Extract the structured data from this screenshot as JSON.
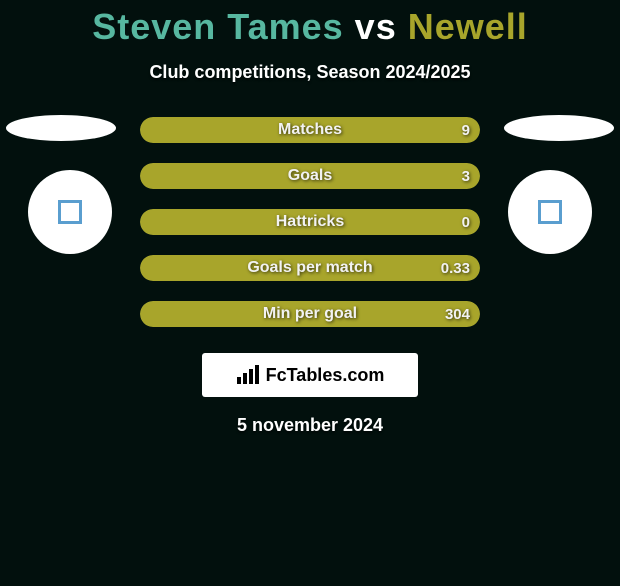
{
  "background_color": "#02100d",
  "title": {
    "player": "Steven Tames",
    "vs": "vs",
    "opponent": "Newell",
    "player_color": "#57b7a0",
    "vs_color": "#ffffff",
    "opponent_color": "#a8a52b",
    "fontsize": 36
  },
  "subtitle": "Club competitions, Season 2024/2025",
  "avatars": {
    "left_border_color": "#5a9ecf",
    "right_border_color": "#5a9ecf"
  },
  "stats": {
    "track_color": "#0e2320",
    "fill_color": "#a8a52b",
    "text_color": "#f2f2f2",
    "rows": [
      {
        "label": "Matches",
        "value": "9",
        "fill_pct": 100
      },
      {
        "label": "Goals",
        "value": "3",
        "fill_pct": 100
      },
      {
        "label": "Hattricks",
        "value": "0",
        "fill_pct": 100
      },
      {
        "label": "Goals per match",
        "value": "0.33",
        "fill_pct": 100
      },
      {
        "label": "Min per goal",
        "value": "304",
        "fill_pct": 100
      }
    ]
  },
  "brand": "FcTables.com",
  "date": "5 november 2024"
}
